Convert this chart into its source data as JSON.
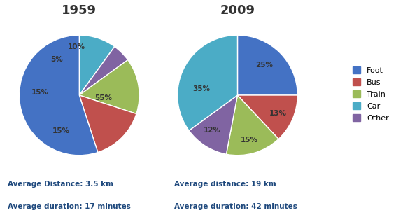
{
  "title_1959": "1959",
  "title_2009": "2009",
  "categories": [
    "Foot",
    "Bus",
    "Train",
    "Car",
    "Other"
  ],
  "colors_foot": "#4472C4",
  "colors_bus": "#C0504D",
  "colors_train": "#9BBB59",
  "colors_car": "#4BACC6",
  "colors_other": "#8064A2",
  "values_1959": [
    55,
    15,
    15,
    10,
    5
  ],
  "values_2009": [
    25,
    13,
    15,
    35,
    12
  ],
  "text1_1959": "Average Distance: 3.5 km",
  "text2_1959": "Average duration: 17 minutes",
  "text1_2009": "Average distance: 19 km",
  "text2_2009": "Average duration: 42 minutes",
  "background_color": "#FFFFFF"
}
